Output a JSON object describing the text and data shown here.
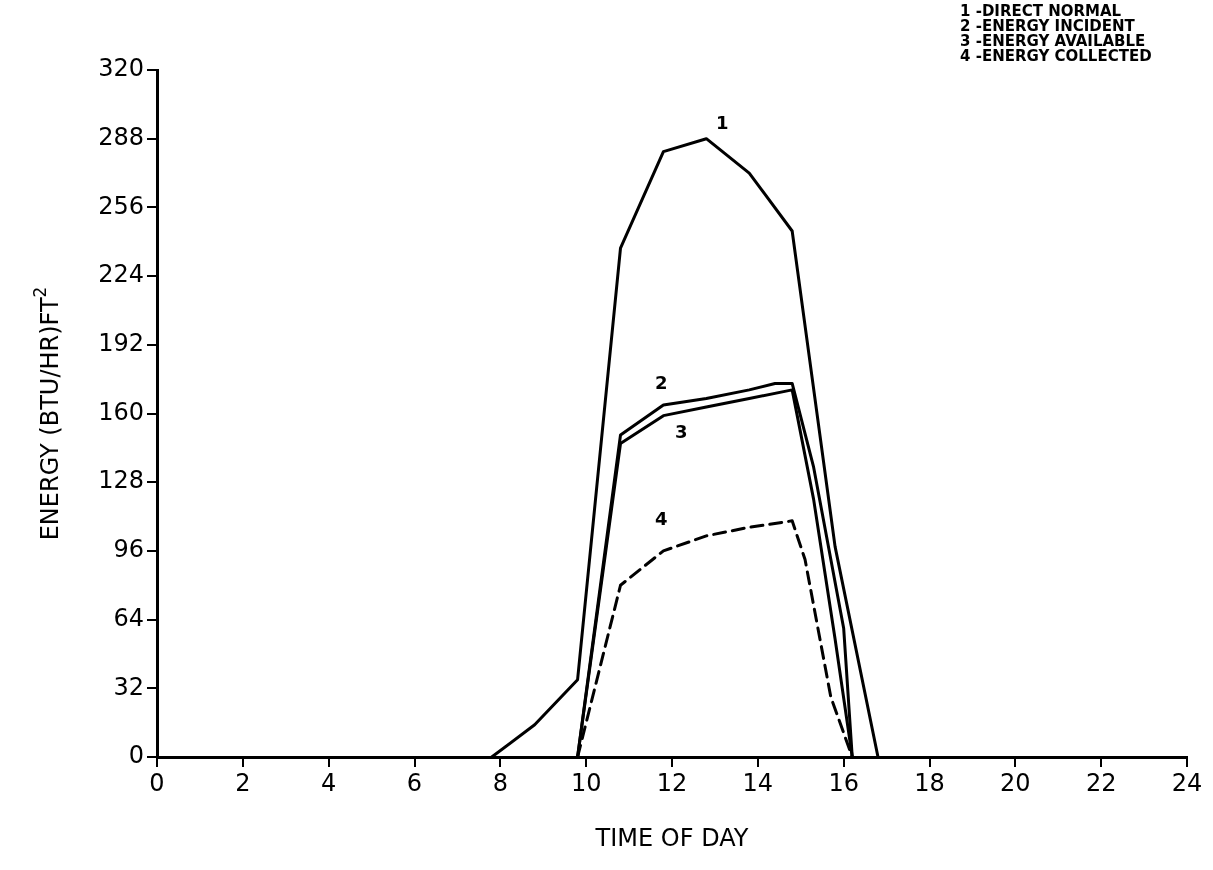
{
  "chart_data": {
    "type": "line",
    "xlabel": "TIME OF DAY",
    "ylabel": "ENERGY (BTU/HR)FT$^{2}$",
    "xlim": [
      0,
      24
    ],
    "xticks": [
      0,
      2,
      4,
      6,
      8,
      10,
      12,
      14,
      16,
      18,
      20,
      22,
      24
    ],
    "ylim": [
      0,
      320
    ],
    "yticks": [
      0,
      32,
      64,
      96,
      128,
      160,
      192,
      224,
      256,
      288,
      320
    ],
    "grid": false,
    "legend": false,
    "marker": "none",
    "series": [
      {
        "name": "1",
        "color": "#000000",
        "line_style": "solid",
        "x": [
          7.8,
          8.8,
          9.8,
          10.8,
          11.8,
          12.8,
          13.8,
          14.8,
          15.8,
          16.8
        ],
        "values": [
          0,
          15,
          36,
          237,
          282,
          288,
          272,
          245,
          98,
          0
        ]
      },
      {
        "name": "2",
        "color": "#000000",
        "line_style": "solid",
        "x": [
          9.8,
          10.8,
          11.8,
          12.8,
          13.8,
          14.4,
          14.8,
          15.3,
          16.0,
          16.2
        ],
        "values": [
          0,
          150,
          164,
          167,
          171,
          174,
          174,
          135,
          60,
          0
        ]
      },
      {
        "name": "3",
        "color": "#000000",
        "line_style": "solid",
        "x": [
          9.8,
          10.8,
          11.8,
          12.8,
          13.8,
          14.8,
          15.3,
          15.8,
          16.2
        ],
        "values": [
          0,
          146,
          159,
          163,
          167,
          171,
          120,
          55,
          0
        ]
      },
      {
        "name": "4",
        "color": "#000000",
        "line_style": "dashed",
        "x": [
          9.8,
          10.8,
          11.8,
          12.8,
          13.8,
          14.8,
          15.1,
          15.7,
          16.2
        ],
        "values": [
          0,
          80,
          96,
          103,
          107,
          110,
          92,
          28,
          0
        ]
      }
    ],
    "annotations": [
      "1 -DIRECT NORMAL",
      "2 -ENERGY INCIDENT",
      "3 -ENERGY AVAILABLE",
      "4 -ENERGY COLLECTED"
    ]
  }
}
